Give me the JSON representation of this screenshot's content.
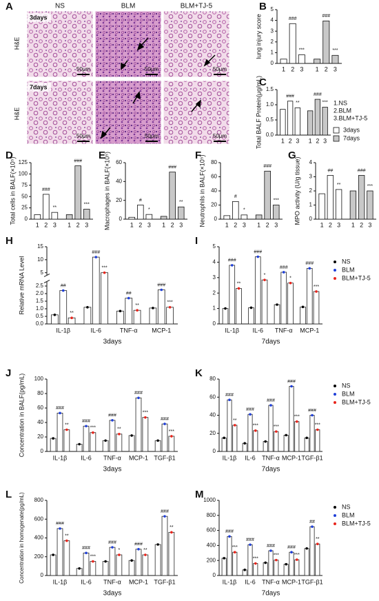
{
  "panel_a": {
    "label": "A",
    "columns": [
      "NS",
      "BLM",
      "BLM+TJ-5"
    ],
    "rows": [
      {
        "label": "3days",
        "stain": "H&E"
      },
      {
        "label": "7days",
        "stain": "H&E"
      }
    ],
    "scale_bar": "50μm"
  },
  "chart_data": [
    {
      "label": "B",
      "type": "bar",
      "ylabel": "lung injury score",
      "categories": [
        "1",
        "2",
        "3"
      ],
      "ylim": [
        0,
        5
      ],
      "yticks": [
        0,
        1,
        2,
        3,
        4,
        5
      ],
      "series": [
        {
          "color": "#ffffff",
          "values": [
            0.4,
            3.7,
            0.8
          ],
          "significance": [
            null,
            "###",
            "***"
          ]
        },
        {
          "color": "#c8c8c8",
          "values": [
            0.4,
            3.95,
            0.75
          ],
          "significance": [
            null,
            "###",
            "***"
          ]
        }
      ]
    },
    {
      "label": "C",
      "type": "bar",
      "ylabel": "Total BALF Protein(μg/mL)",
      "categories": [
        "1",
        "2",
        "3"
      ],
      "ylim": [
        0,
        1.5
      ],
      "yticks": [
        {
          "value": 0,
          "label": "0.0"
        },
        0.5,
        {
          "value": 1,
          "label": "1.0"
        },
        1.5
      ],
      "legend_notes": [
        "1.NS",
        "2.BLM",
        "3.BLM+TJ-5"
      ],
      "legend": "right",
      "series": [
        {
          "name": "3days",
          "color": "#ffffff",
          "values": [
            0.85,
            1.12,
            0.9
          ],
          "significance": [
            null,
            "###",
            "**"
          ]
        },
        {
          "name": "7days",
          "color": "#c8c8c8",
          "values": [
            0.8,
            1.18,
            0.92
          ],
          "significance": [
            null,
            "###",
            "***"
          ]
        }
      ]
    },
    {
      "label": "D",
      "type": "bar",
      "ylabel": "Total cells in BALF(×10⁵)",
      "categories": [
        "1",
        "2",
        "3"
      ],
      "ylim": [
        0,
        125
      ],
      "yticks": [
        0,
        25,
        50,
        75,
        100,
        125
      ],
      "series": [
        {
          "color": "#ffffff",
          "values": [
            10,
            55,
            15
          ],
          "significance": [
            null,
            "###",
            "**"
          ]
        },
        {
          "color": "#c8c8c8",
          "values": [
            10,
            118,
            22
          ],
          "significance": [
            null,
            "###",
            "***"
          ]
        }
      ]
    },
    {
      "label": "E",
      "type": "bar",
      "ylabel": "Macrophages in BALF(×10⁵)",
      "categories": [
        "1",
        "2",
        "3"
      ],
      "ylim": [
        0,
        60
      ],
      "yticks": [
        0,
        20,
        40,
        60
      ],
      "series": [
        {
          "color": "#ffffff",
          "values": [
            2,
            15,
            5
          ],
          "significance": [
            null,
            "#",
            "*"
          ]
        },
        {
          "color": "#c8c8c8",
          "values": [
            3,
            50,
            13
          ],
          "significance": [
            null,
            "###",
            "**"
          ]
        }
      ]
    },
    {
      "label": "F",
      "type": "bar",
      "ylabel": "Neutrophils in BALF(×10⁵)",
      "categories": [
        "1",
        "2",
        "3"
      ],
      "ylim": [
        0,
        80
      ],
      "yticks": [
        0,
        20,
        40,
        60,
        80
      ],
      "series": [
        {
          "color": "#ffffff",
          "values": [
            5,
            25,
            6
          ],
          "significance": [
            null,
            "#",
            "*"
          ]
        },
        {
          "color": "#c8c8c8",
          "values": [
            6,
            68,
            20
          ],
          "significance": [
            null,
            "###",
            "***"
          ]
        }
      ]
    },
    {
      "label": "G",
      "type": "bar",
      "ylabel": "MPO activity (U/g tissue)",
      "categories": [
        "1",
        "2",
        "3"
      ],
      "ylim": [
        0,
        4
      ],
      "yticks": [
        0,
        1,
        2,
        3,
        4
      ],
      "series": [
        {
          "color": "#ffffff",
          "values": [
            1.8,
            3.1,
            2.1
          ],
          "significance": [
            null,
            "##",
            "**"
          ]
        },
        {
          "color": "#c8c8c8",
          "values": [
            2.0,
            3.1,
            2.0
          ],
          "significance": [
            null,
            "###",
            "***"
          ]
        }
      ]
    },
    {
      "label": "H",
      "type": "grouped_bar",
      "ylabel": "Relative mRNA Level",
      "xlabel": "3days",
      "categories": [
        "IL-1β",
        "IL-6",
        "TNF-α",
        "MCP-1"
      ],
      "ylim": [
        0,
        15
      ],
      "ybreak": [
        2.8,
        4
      ],
      "yticks": [
        {
          "value": 0,
          "label": "0.0"
        },
        0.5,
        {
          "value": 1,
          "label": "1.0"
        },
        1.5,
        {
          "value": 2,
          "label": "2.0"
        },
        2.5,
        5,
        10,
        15
      ],
      "series": [
        {
          "color": "#000000",
          "values": [
            0.6,
            1.1,
            0.85,
            1.05
          ]
        },
        {
          "color": "#1f3fd8",
          "values": [
            2.2,
            11,
            1.7,
            2.25
          ],
          "significance": [
            "##",
            "###",
            "##",
            "###"
          ]
        },
        {
          "color": "#e8251c",
          "values": [
            0.4,
            5,
            0.9,
            1.1
          ],
          "significance": [
            "**",
            "***",
            "**",
            "***"
          ]
        }
      ]
    },
    {
      "label": "I",
      "type": "grouped_bar",
      "xlabel": "7days",
      "categories": [
        "IL-1β",
        "IL-6",
        "TNF-α",
        "MCP-1"
      ],
      "ylim": [
        0,
        5
      ],
      "yticks": [
        0,
        1,
        2,
        3,
        4,
        5
      ],
      "legend": "right",
      "series": [
        {
          "name": "NS",
          "color": "#000000",
          "values": [
            1.0,
            1.05,
            1.25,
            1.1
          ]
        },
        {
          "name": "BLM",
          "color": "#1f3fd8",
          "values": [
            3.8,
            4.35,
            3.35,
            3.6
          ],
          "significance": [
            "###",
            "###",
            "###",
            "###"
          ]
        },
        {
          "name": "BLM+TJ-5",
          "color": "#e8251c",
          "values": [
            2.3,
            2.85,
            2.65,
            2.1
          ],
          "significance": [
            "**",
            "*",
            "*",
            "***"
          ]
        }
      ]
    },
    {
      "label": "J",
      "type": "grouped_bar",
      "ylabel": "Concentration in BALF(pg/mL)",
      "xlabel": "3days",
      "categories": [
        "IL-1β",
        "IL-6",
        "TNF-α",
        "MCP-1",
        "TGF-β1"
      ],
      "ylim": [
        0,
        100
      ],
      "yticks": [
        0,
        20,
        40,
        60,
        80,
        100
      ],
      "series": [
        {
          "color": "#000000",
          "values": [
            18,
            10,
            15,
            22,
            15
          ]
        },
        {
          "color": "#1f3fd8",
          "values": [
            53,
            35,
            43,
            74,
            38
          ],
          "significance": [
            "###",
            "###",
            "###",
            "###",
            "###"
          ]
        },
        {
          "color": "#e8251c",
          "values": [
            30,
            26,
            24,
            47,
            21
          ],
          "significance": [
            "**",
            "***",
            "**",
            "***",
            "***"
          ]
        }
      ]
    },
    {
      "label": "K",
      "type": "grouped_bar",
      "xlabel": "7days",
      "categories": [
        "IL-1β",
        "IL-6",
        "TNF-α",
        "MCP-1",
        "TGF-β1"
      ],
      "ylim": [
        0,
        80
      ],
      "yticks": [
        0,
        20,
        40,
        60,
        80
      ],
      "legend": "right",
      "series": [
        {
          "name": "NS",
          "color": "#000000",
          "values": [
            15,
            9,
            11,
            18,
            15
          ]
        },
        {
          "name": "BLM",
          "color": "#1f3fd8",
          "values": [
            57,
            41,
            51,
            72,
            40
          ],
          "significance": [
            "###",
            "###",
            "###",
            "###",
            "###"
          ]
        },
        {
          "name": "BLM+TJ-5",
          "color": "#e8251c",
          "values": [
            29,
            23,
            22,
            33,
            24
          ],
          "significance": [
            "**",
            "***",
            "***",
            "***",
            "***"
          ]
        }
      ]
    },
    {
      "label": "L",
      "type": "grouped_bar",
      "ylabel": "Concentration in homogenate(pg/mL)",
      "xlabel": "3days",
      "categories": [
        "IL-1β",
        "IL-6",
        "TNF-α",
        "MCP-1",
        "TGF-β1"
      ],
      "ylim": [
        0,
        800
      ],
      "yticks": [
        0,
        200,
        400,
        600,
        800
      ],
      "series": [
        {
          "color": "#000000",
          "values": [
            220,
            75,
            150,
            160,
            330
          ]
        },
        {
          "color": "#1f3fd8",
          "values": [
            500,
            240,
            300,
            280,
            630
          ],
          "significance": [
            "###",
            "###",
            "###",
            "###",
            "###"
          ]
        },
        {
          "color": "#e8251c",
          "values": [
            370,
            150,
            220,
            220,
            460
          ],
          "significance": [
            "**",
            "***",
            "*",
            "**",
            "**"
          ]
        }
      ]
    },
    {
      "label": "M",
      "type": "grouped_bar",
      "xlabel": "7days",
      "categories": [
        "IL-1β",
        "IL-6",
        "TNF-α",
        "MCP-1",
        "TGF-β1"
      ],
      "ylim": [
        0,
        1000
      ],
      "yticks": [
        0,
        200,
        400,
        600,
        800,
        1000
      ],
      "legend": "right",
      "series": [
        {
          "name": "NS",
          "color": "#000000",
          "values": [
            230,
            75,
            170,
            150,
            360
          ]
        },
        {
          "name": "BLM",
          "color": "#1f3fd8",
          "values": [
            520,
            410,
            330,
            310,
            650
          ],
          "significance": [
            "###",
            "###",
            "###",
            "###",
            "##"
          ]
        },
        {
          "name": "BLM+TJ-5",
          "color": "#e8251c",
          "values": [
            310,
            160,
            205,
            210,
            420
          ],
          "significance": [
            "***",
            "***",
            "***",
            "***",
            "**"
          ]
        }
      ]
    }
  ]
}
